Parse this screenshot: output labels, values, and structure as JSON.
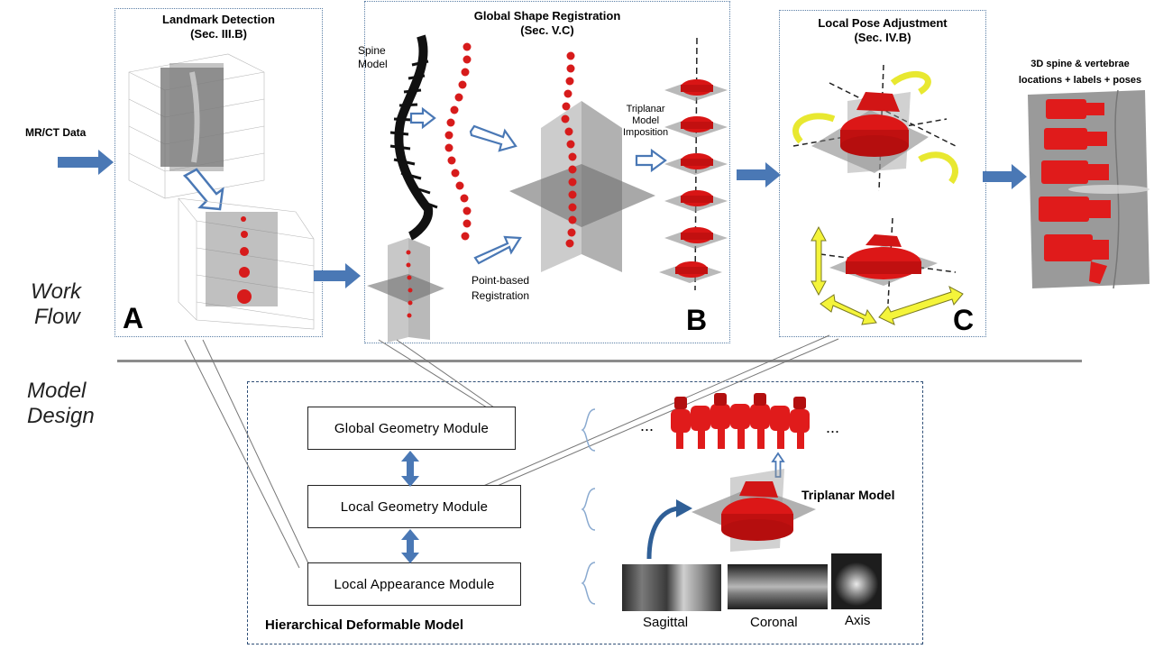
{
  "input": {
    "label": "MR/CT Data"
  },
  "panel_a": {
    "title_line1": "Landmark Detection",
    "title_line2": "(Sec. III.B)",
    "letter": "A"
  },
  "panel_b": {
    "title_line1": "Global Shape Registration",
    "title_line2": "(Sec. V.C)",
    "spine_model_line1": "Spine",
    "spine_model_line2": "Model",
    "triplanar_line1": "Triplanar",
    "triplanar_line2": "Model",
    "triplanar_line3": "Imposition",
    "point_based_line1": "Point-based",
    "point_based_line2": "Registration",
    "letter": "B"
  },
  "panel_c": {
    "title_line1": "Local Pose Adjustment",
    "title_line2": "(Sec. IV.B)",
    "letter": "C"
  },
  "output": {
    "line1": "3D spine & vertebrae",
    "line2": "locations + labels + poses"
  },
  "section_labels": {
    "workflow_line1": "Work",
    "workflow_line2": "Flow",
    "model_line1": "Model",
    "model_line2": "Design"
  },
  "model_design": {
    "modules": [
      "Global Geometry Module",
      "Local Geometry Module",
      "Local Appearance Module"
    ],
    "ellipsis": "...",
    "triplanar_model": "Triplanar Model",
    "hierarchical": "Hierarchical Deformable Model",
    "views": [
      "Sagittal",
      "Coronal",
      "Axis"
    ]
  },
  "colors": {
    "arrow_blue": "#4a78b5",
    "vertebra_red": "#e01b1b",
    "highlight_yellow": "#f4f43a",
    "panel_border": "#5b7fa6"
  }
}
